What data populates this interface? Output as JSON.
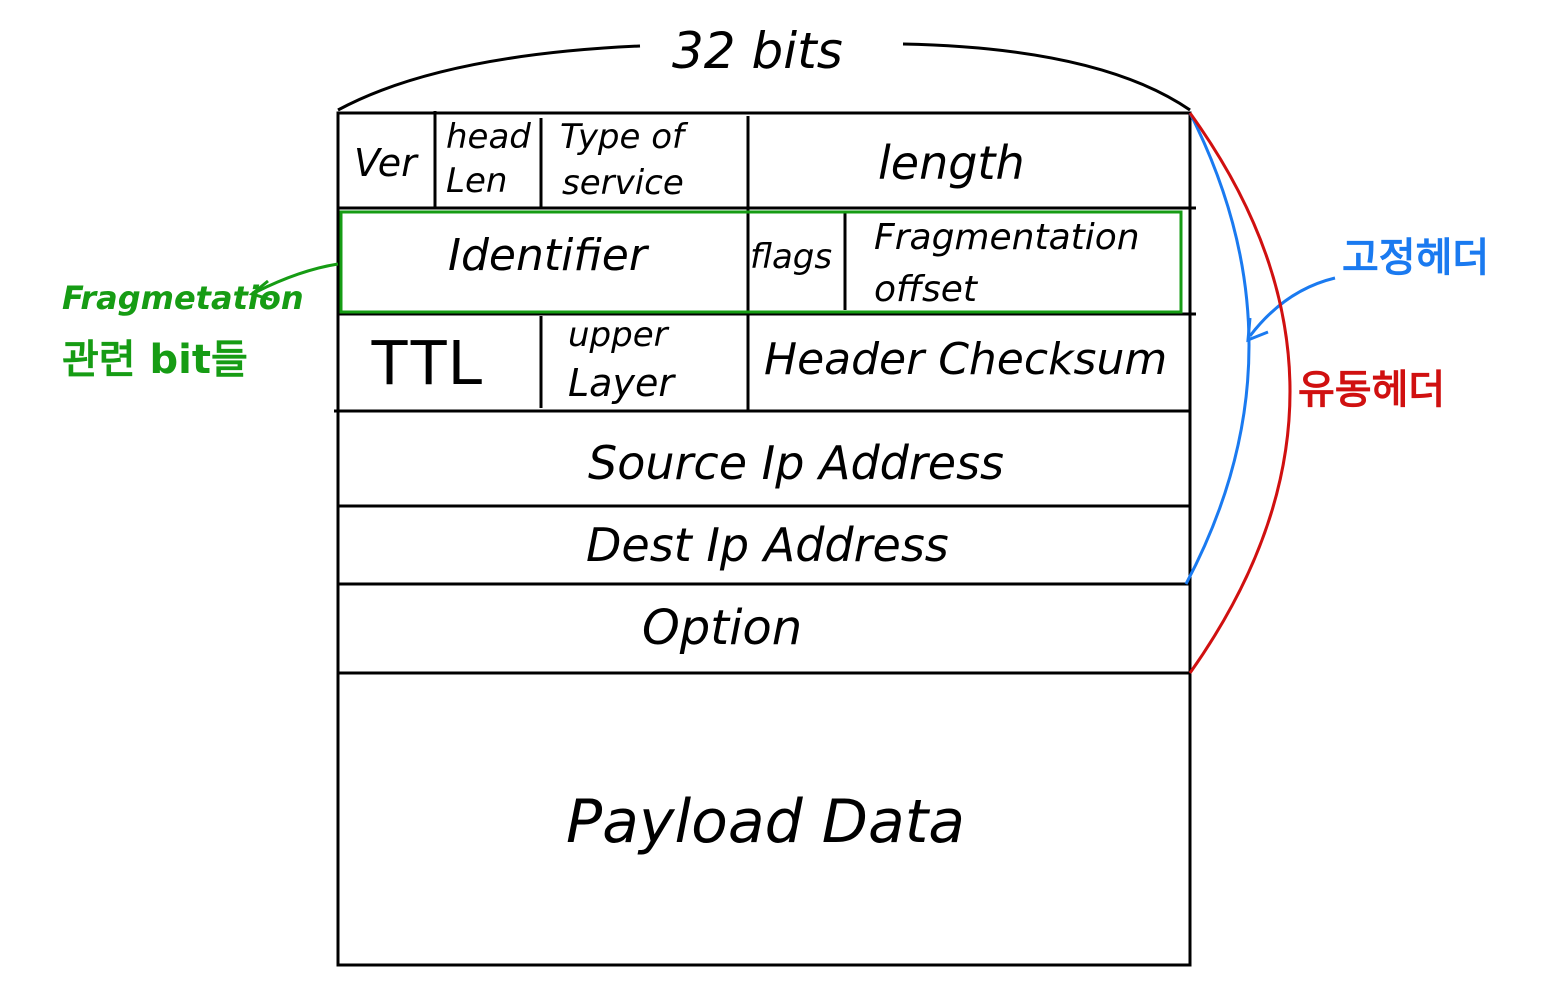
{
  "title": "32 bits",
  "fields": {
    "ver": "Ver",
    "head_len_1": "head",
    "head_len_2": "Len",
    "tos_1": "Type of",
    "tos_2": "service",
    "length": "length",
    "identifier": "Identifier",
    "flags": "flags",
    "frag_offset_1": "Fragmentation",
    "frag_offset_2": "offset",
    "ttl": "TTL",
    "upper_layer_1": "upper",
    "upper_layer_2": "Layer",
    "header_checksum": "Header Checksum",
    "source_ip": "Source Ip Address",
    "dest_ip": "Dest Ip Address",
    "option": "Option",
    "payload": "Payload Data"
  },
  "annotations": {
    "fragmentation_1": "Fragmetation",
    "fragmentation_2": "관련 bit들",
    "fixed_header": "고정헤더",
    "variable_header": "유동헤더"
  },
  "colors": {
    "fragmentation": "#169c14",
    "fixed_header": "#1a7af0",
    "variable_header": "#d01010"
  }
}
